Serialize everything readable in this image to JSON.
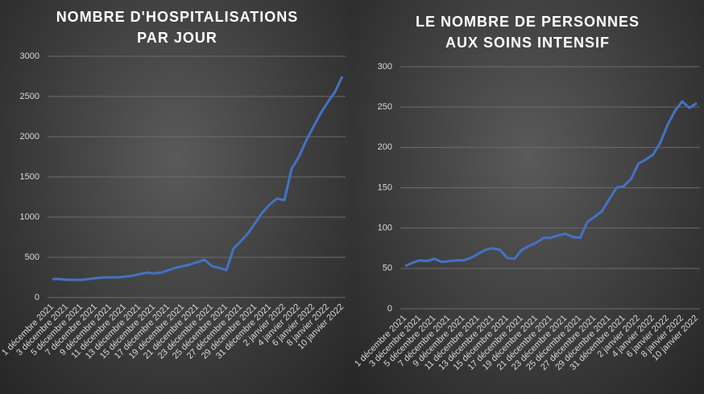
{
  "chart_data": [
    {
      "type": "line",
      "title": "NOMBRE D'HOSPITALISATIONS PAR JOUR",
      "categories": [
        "1 décembre 2021",
        null,
        "3 décembre 2021",
        null,
        "5 décembre 2021",
        null,
        "7 décembre 2021",
        null,
        "9 décembre 2021",
        null,
        "11 décembre 2021",
        null,
        "13 décembre 2021",
        null,
        "15 décembre 2021",
        null,
        "17 décembre 2021",
        null,
        "19 décembre 2021",
        null,
        "21 décembre 2021",
        null,
        "23 décembre 2021",
        null,
        "25 décembre 2021",
        null,
        "27 décembre 2021",
        null,
        "29 décembre 2021",
        null,
        "31 décembre 2021",
        null,
        "2 janvier 2022",
        null,
        "4 janvier 2022",
        null,
        "6 janvier 2022",
        null,
        "8 janvier 2022",
        null,
        "10 janvier 2022"
      ],
      "series": [
        {
          "color": "#4472c4",
          "values": [
            230,
            230,
            220,
            220,
            220,
            230,
            240,
            250,
            250,
            250,
            260,
            270,
            290,
            310,
            300,
            310,
            340,
            370,
            390,
            410,
            440,
            470,
            390,
            370,
            340,
            610,
            700,
            800,
            930,
            1060,
            1160,
            1230,
            1210,
            1600,
            1750,
            1950,
            2120,
            2290,
            2430,
            2560,
            2750
          ]
        }
      ],
      "ylim": [
        0,
        3000
      ],
      "yticks": [
        0,
        500,
        1000,
        1500,
        2000,
        2500,
        3000
      ],
      "grid": true
    },
    {
      "type": "line",
      "title": "LE NOMBRE DE PERSONNES AUX SOINS INTENSIF",
      "categories": [
        "1 décembre 2021",
        null,
        "3 décembre 2021",
        null,
        "5 décembre 2021",
        null,
        "7 décembre 2021",
        null,
        "9 décembre 2021",
        null,
        "11 décembre 2021",
        null,
        "13 décembre 2021",
        null,
        "15 décembre 2021",
        null,
        "17 décembre 2021",
        null,
        "19 décembre 2021",
        null,
        "21 décembre 2021",
        null,
        "23 décembre 2021",
        null,
        "25 décembre 2021",
        null,
        "27 décembre 2021",
        null,
        "29 décembre 2021",
        null,
        "31 décembre 2021",
        null,
        "2 janvier 2022",
        null,
        "4 janvier 2022",
        null,
        "6 janvier 2022",
        null,
        "8 janvier 2022",
        null,
        "10 janvier 2022"
      ],
      "series": [
        {
          "color": "#4472c4",
          "values": [
            53,
            57,
            60,
            59,
            62,
            58,
            59,
            60,
            60,
            63,
            68,
            73,
            75,
            73,
            63,
            62,
            73,
            78,
            82,
            88,
            88,
            91,
            93,
            89,
            88,
            108,
            114,
            121,
            136,
            150,
            152,
            161,
            180,
            185,
            191,
            206,
            228,
            245,
            257,
            249,
            255
          ]
        }
      ],
      "ylim": [
        0,
        300
      ],
      "yticks": [
        0,
        50,
        100,
        150,
        200,
        250,
        300
      ],
      "grid": true
    }
  ]
}
